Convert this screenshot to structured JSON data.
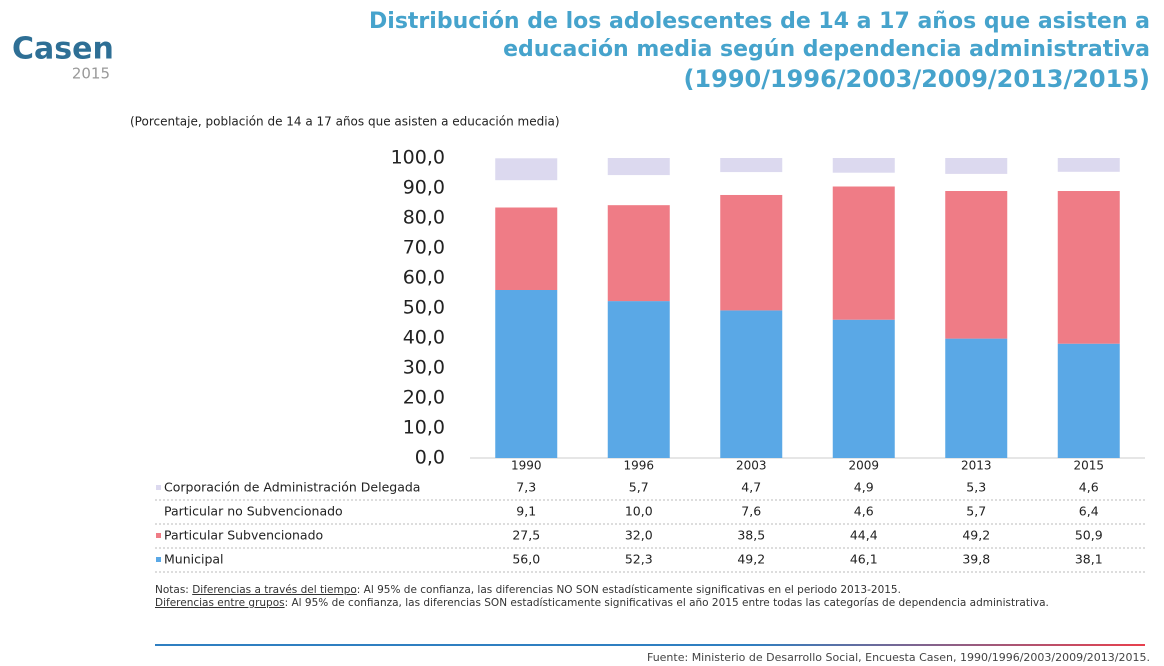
{
  "logo": {
    "name": "Casen",
    "year": "2015"
  },
  "chart_data": {
    "type": "bar",
    "stacked": true,
    "title": [
      "Distribución de los adolescentes de 14 a 17 años que asisten a",
      "educación media según dependencia administrativa",
      "(1990/1996/2003/2009/2013/2015)"
    ],
    "subtitle": "(Porcentaje, población de 14 a 17 años que asisten a educación media)",
    "categories": [
      "1990",
      "1996",
      "2003",
      "2009",
      "2013",
      "2015"
    ],
    "ylim": [
      0,
      100
    ],
    "yticks": [
      {
        "value": 0,
        "label": "0,0"
      },
      {
        "value": 10,
        "label": "10,0"
      },
      {
        "value": 20,
        "label": "20,0"
      },
      {
        "value": 30,
        "label": "30,0"
      },
      {
        "value": 40,
        "label": "40,0"
      },
      {
        "value": 50,
        "label": "50,0"
      },
      {
        "value": 60,
        "label": "60,0"
      },
      {
        "value": 70,
        "label": "70,0"
      },
      {
        "value": 80,
        "label": "80,0"
      },
      {
        "value": 90,
        "label": "90,0"
      },
      {
        "value": 100,
        "label": "100,0"
      }
    ],
    "series": [
      {
        "name": "Municipal",
        "color": "#5aa8e6",
        "values": [
          56.0,
          52.3,
          49.2,
          46.1,
          39.8,
          38.1
        ],
        "value_labels": [
          "56,0",
          "52,3",
          "49,2",
          "46,1",
          "39,8",
          "38,1"
        ]
      },
      {
        "name": "Particular Subvencionado",
        "color": "#ef7c86",
        "values": [
          27.5,
          32.0,
          38.5,
          44.4,
          49.2,
          50.9
        ],
        "value_labels": [
          "27,5",
          "32,0",
          "38,5",
          "44,4",
          "49,2",
          "50,9"
        ]
      },
      {
        "name": "Particular no Subvencionado",
        "color": "#ffffff",
        "values": [
          9.1,
          10.0,
          7.6,
          4.6,
          5.7,
          6.4
        ],
        "value_labels": [
          "9,1",
          "10,0",
          "7,6",
          "4,6",
          "5,7",
          "6,4"
        ]
      },
      {
        "name": "Corporación de Administración Delegada",
        "color": "#dcd9ef",
        "values": [
          7.3,
          5.7,
          4.7,
          4.9,
          5.3,
          4.6
        ],
        "value_labels": [
          "7,3",
          "5,7",
          "4,7",
          "4,9",
          "5,3",
          "4,6"
        ]
      }
    ]
  },
  "notes": {
    "prefix": "Notas:",
    "items": [
      {
        "label": "Diferencias a través del tiempo",
        "text": ": Al 95% de confianza, las diferencias NO SON estadísticamente significativas en el periodo 2013-2015."
      },
      {
        "label": "Diferencias entre grupos",
        "text": ": Al 95% de confianza, las diferencias SON estadísticamente significativas el año 2015 entre todas las categorías de dependencia administrativa."
      }
    ]
  },
  "source": "Fuente: Ministerio de Desarrollo Social, Encuesta Casen, 1990/1996/2003/2009/2013/2015."
}
